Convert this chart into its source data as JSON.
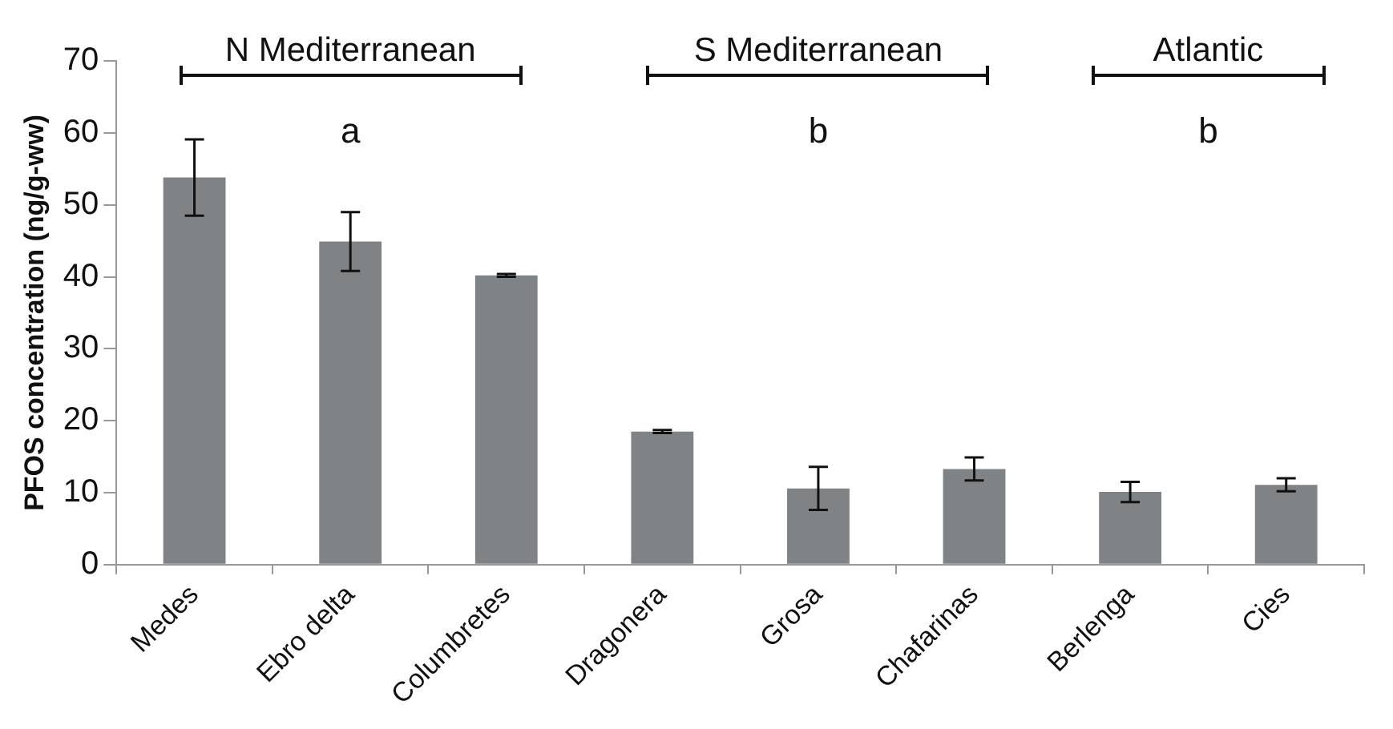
{
  "chart_data": {
    "type": "bar",
    "ylabel": "PFOS concentration (ng/g-ww)",
    "categories": [
      "Medes",
      "Ebro delta",
      "Columbretes",
      "Dragonera",
      "Grosa",
      "Chafarinas",
      "Berlenga",
      "Cies"
    ],
    "values": [
      53.8,
      44.9,
      40.2,
      18.5,
      10.6,
      13.3,
      10.1,
      11.1
    ],
    "errors": [
      5.3,
      4.1,
      0.2,
      0.2,
      3,
      1.6,
      1.4,
      0.9
    ],
    "color": "#808386",
    "ylim": [
      0,
      70
    ],
    "yticks": [
      0,
      10,
      20,
      30,
      40,
      50,
      60,
      70
    ],
    "grid": false,
    "legend": false,
    "annotations": [
      "N Mediterranean",
      "S Mediterranean",
      "Atlantic",
      "a",
      "b",
      "b"
    ]
  }
}
